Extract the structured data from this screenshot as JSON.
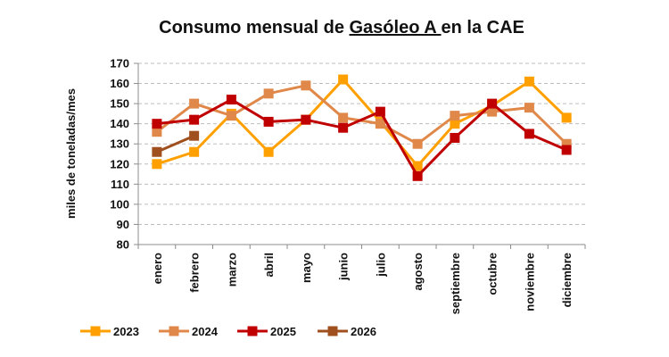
{
  "chart_data": {
    "type": "line",
    "title": {
      "prefix": "Consumo mensual de ",
      "underlined": "Gasóleo A ",
      "suffix": "en la CAE"
    },
    "ylabel": "miles de toneladas/mes",
    "ylim": [
      80,
      170
    ],
    "yticks": [
      "80",
      "90",
      "100",
      "110",
      "120",
      "130",
      "140",
      "150",
      "160",
      "170"
    ],
    "grid": "horizontal dashed",
    "legend_position": "bottom",
    "categories": [
      "enero",
      "febrero",
      "marzo",
      "abril",
      "mayo",
      "junio",
      "julio",
      "agosto",
      "septiembre",
      "octubre",
      "noviembre",
      "diciembre"
    ],
    "series": [
      {
        "name": "2023",
        "color": "#FFA000",
        "values": [
          120,
          126,
          145,
          126,
          142,
          162,
          141,
          119,
          140,
          149,
          161,
          143
        ]
      },
      {
        "name": "2024",
        "color": "#E0884A",
        "values": [
          136,
          150,
          144,
          155,
          159,
          143,
          140,
          130,
          144,
          146,
          148,
          130
        ]
      },
      {
        "name": "2025",
        "color": "#C00000",
        "values": [
          140,
          142,
          152,
          141,
          142,
          138,
          146,
          114,
          133,
          150,
          135,
          127
        ]
      },
      {
        "name": "2026",
        "color": "#A0501E",
        "values": [
          126,
          134,
          null,
          null,
          null,
          null,
          null,
          null,
          null,
          null,
          null,
          null
        ]
      }
    ]
  }
}
